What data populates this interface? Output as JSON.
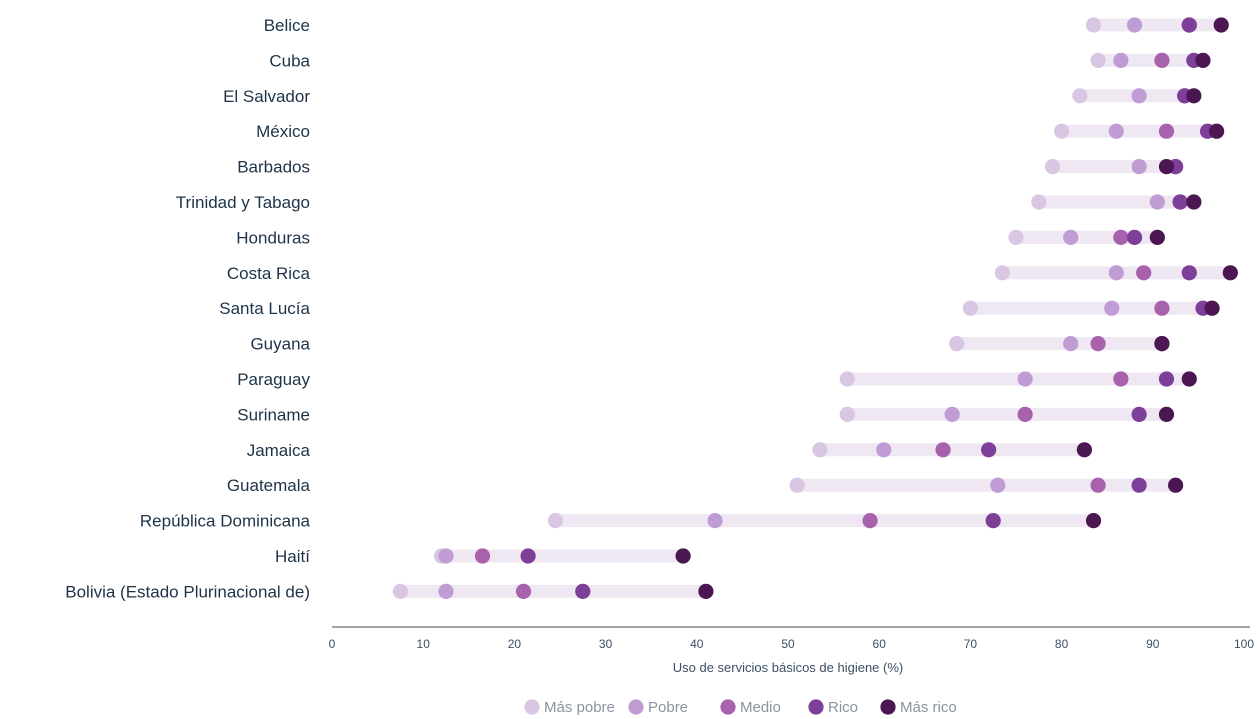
{
  "chart_data": {
    "type": "scatter",
    "xlabel": "Uso de servicios básicos de higiene (%)",
    "xlim": [
      0,
      100
    ],
    "xticks": [
      0,
      10,
      20,
      30,
      40,
      50,
      60,
      70,
      80,
      90,
      100
    ],
    "legend_position": "bottom-center",
    "series": [
      {
        "name": "Más pobre",
        "color": "#d9c6e3"
      },
      {
        "name": "Pobre",
        "color": "#bf9cd3"
      },
      {
        "name": "Medio",
        "color": "#a861ad"
      },
      {
        "name": "Rico",
        "color": "#7d3f98"
      },
      {
        "name": "Más rico",
        "color": "#4b1652"
      }
    ],
    "categories": [
      "Belice",
      "Cuba",
      "El Salvador",
      "México",
      "Barbados",
      "Trinidad y Tabago",
      "Honduras",
      "Costa Rica",
      "Santa Lucía",
      "Guyana",
      "Paraguay",
      "Suriname",
      "Jamaica",
      "Guatemala",
      "República Dominicana",
      "Haití",
      "Bolivia (Estado Plurinacional de)"
    ],
    "values": [
      [
        83.5,
        88,
        94,
        94,
        97.5
      ],
      [
        84,
        86.5,
        91,
        94.5,
        95.5
      ],
      [
        82,
        88.5,
        93.5,
        93.5,
        94.5
      ],
      [
        80,
        86,
        91.5,
        96,
        97
      ],
      [
        79,
        88.5,
        92.5,
        92.5,
        91.5
      ],
      [
        77.5,
        90.5,
        93,
        93,
        94.5
      ],
      [
        75,
        81,
        86.5,
        88,
        90.5
      ],
      [
        73.5,
        86,
        89,
        94,
        98.5
      ],
      [
        70,
        85.5,
        91,
        95.5,
        96.5
      ],
      [
        68.5,
        81,
        84,
        91,
        91
      ],
      [
        56.5,
        76,
        86.5,
        91.5,
        94
      ],
      [
        56.5,
        68,
        76,
        88.5,
        91.5
      ],
      [
        53.5,
        60.5,
        67,
        72,
        82.5
      ],
      [
        51,
        73,
        84,
        88.5,
        92.5
      ],
      [
        24.5,
        42,
        59,
        72.5,
        83.5
      ],
      [
        12,
        12.5,
        16.5,
        21.5,
        38.5
      ],
      [
        7.5,
        12.5,
        21,
        27.5,
        41
      ]
    ],
    "range_bar_color": "#efe8f3",
    "axis_color": "#4a4a4a"
  }
}
